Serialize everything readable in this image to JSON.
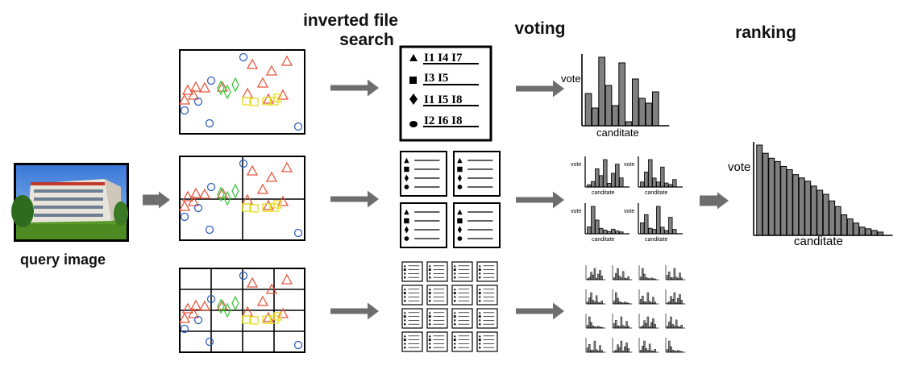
{
  "headings": {
    "inverted_file_search_line1": "inverted file",
    "inverted_file_search_line2": "search",
    "voting": "voting",
    "ranking": "ranking"
  },
  "query_image_label": "query image",
  "inverted_file_entries": [
    {
      "symbol": "triangle",
      "ids": "I1 I4 I7"
    },
    {
      "symbol": "square",
      "ids": "I3 I5"
    },
    {
      "symbol": "diamond",
      "ids": "I1 I5 I8"
    },
    {
      "symbol": "circle",
      "ids": "I2 I6 I8"
    }
  ],
  "histogram": {
    "ylabel": "vote",
    "xlabel": "canditate",
    "values": [
      40,
      22,
      85,
      50,
      25,
      78,
      5,
      58,
      34,
      28,
      42
    ],
    "ranked_values": [
      110,
      100,
      94,
      90,
      84,
      80,
      74,
      70,
      66,
      60,
      55,
      50,
      42,
      35,
      25,
      20,
      15,
      10,
      8,
      6,
      4
    ]
  },
  "colors": {
    "triangle": "#e8553c",
    "circle": "#2f5fb8",
    "diamond": "#3ec83e",
    "square": "#e6dc1e",
    "arrow": "#6e6e6e",
    "bar": "#808080"
  },
  "icons": [
    "triangle-icon",
    "square-icon",
    "diamond-icon",
    "circle-icon",
    "right-arrow-icon",
    "photo-thumbnail"
  ]
}
